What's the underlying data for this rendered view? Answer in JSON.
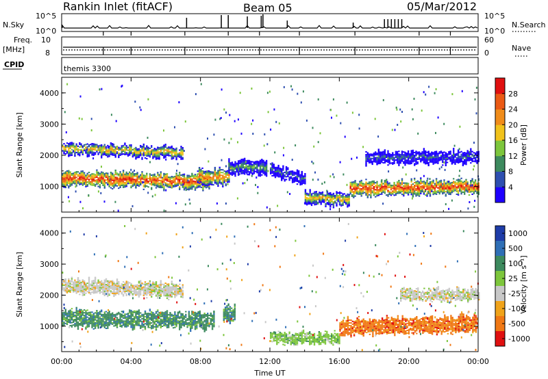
{
  "header": {
    "station": "Rankin Inlet (fitACF)",
    "beam": "Beam 05",
    "date": "05/Mar/2012"
  },
  "noise_panel": {
    "left_label": "N.Sky",
    "right_label": "N.Search",
    "tick_labels": [
      "10^5",
      "10^0"
    ]
  },
  "freq_panel": {
    "left_label_line1": "Freq.",
    "left_label_line2": "[MHz]",
    "left_ticks": [
      "10",
      "8"
    ],
    "right_label": "Nave",
    "right_ticks": [
      "60",
      "0"
    ]
  },
  "cpid_panel": {
    "label": "CPID",
    "program": "themis 3300"
  },
  "colors": {
    "power": [
      "#1e00ff",
      "#2e4fb0",
      "#3d8a5e",
      "#7dc63c",
      "#f1c21b",
      "#f08c1a",
      "#eb5a14",
      "#e01010"
    ],
    "velocity": [
      "#1e3ca8",
      "#2f6fb6",
      "#3d8a5e",
      "#7dc63c",
      "#c8c8c8",
      "#f0a31a",
      "#f07814",
      "#e01010"
    ]
  },
  "chart_data": [
    {
      "type": "heatmap",
      "title": "",
      "xlabel": "Time UT",
      "ylabel": "Slant Range [km]",
      "x_tick_labels": [
        "00:00",
        "04:00",
        "08:00",
        "12:00",
        "16:00",
        "20:00",
        "00:00"
      ],
      "y_ticks": [
        1000,
        2000,
        3000,
        4000
      ],
      "xlim_hours": [
        0,
        24
      ],
      "ylim_km": [
        180,
        4500
      ],
      "colorbar": {
        "label": "Power [dB]",
        "ticks": [
          4,
          8,
          12,
          16,
          20,
          24,
          28
        ],
        "range": [
          0,
          32
        ]
      }
    },
    {
      "type": "heatmap",
      "title": "",
      "xlabel": "Time UT",
      "ylabel": "Slant Range [km]",
      "x_tick_labels": [
        "00:00",
        "04:00",
        "08:00",
        "12:00",
        "16:00",
        "20:00",
        "00:00"
      ],
      "y_ticks": [
        1000,
        2000,
        3000,
        4000
      ],
      "xlim_hours": [
        0,
        24
      ],
      "ylim_km": [
        180,
        4500
      ],
      "colorbar": {
        "label": "Velocity [m s⁻¹]",
        "ticks": [
          "1000",
          "500",
          "100",
          "25",
          "-25",
          "-100",
          "-500",
          "-1000"
        ]
      }
    }
  ]
}
